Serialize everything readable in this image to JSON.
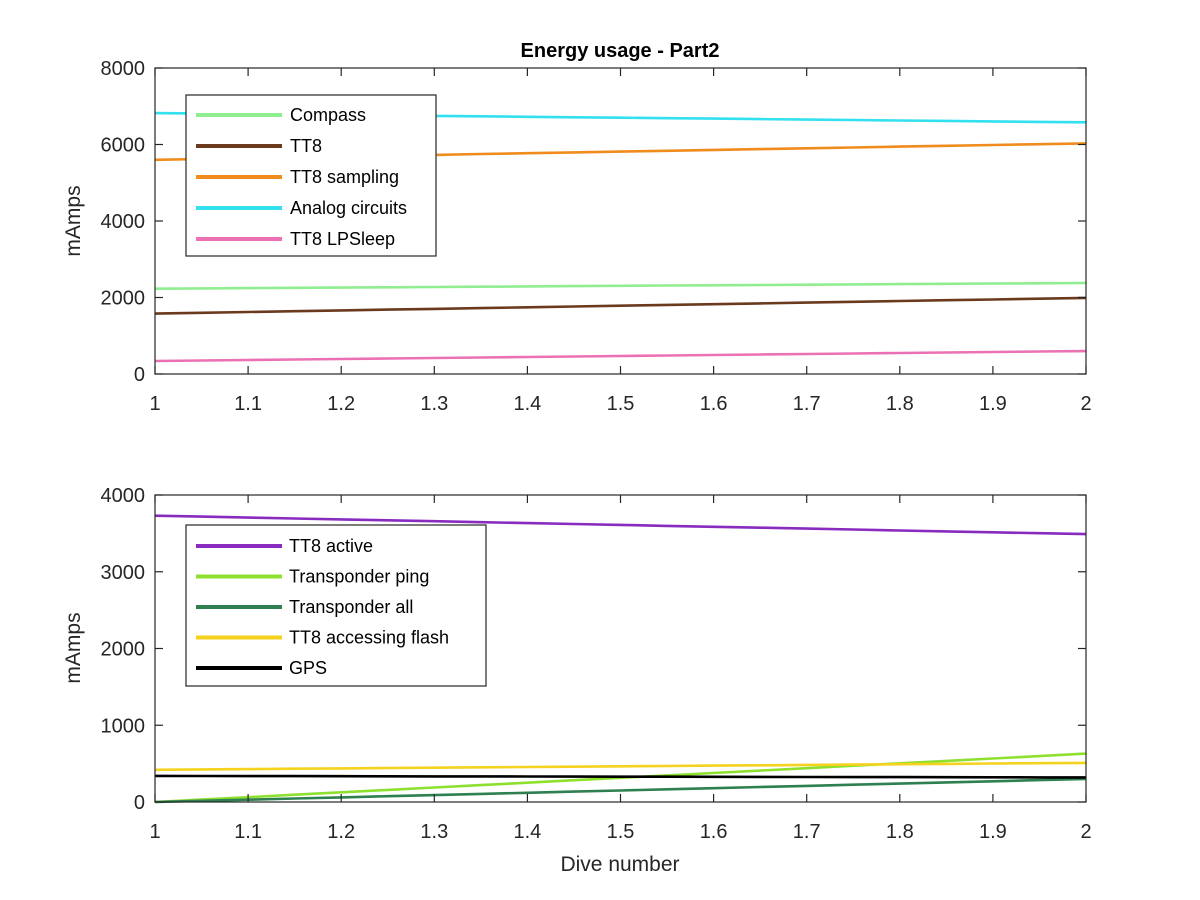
{
  "chart_data": [
    {
      "type": "line",
      "title": "Energy usage - Part2",
      "xlabel": "",
      "ylabel": "mAmps",
      "xlim": [
        1,
        2
      ],
      "ylim": [
        0,
        8000
      ],
      "xticks": [
        1,
        1.1,
        1.2,
        1.3,
        1.4,
        1.5,
        1.6,
        1.7,
        1.8,
        1.9,
        2
      ],
      "yticks": [
        0,
        2000,
        4000,
        6000,
        8000
      ],
      "x_tick_labels": [
        "1",
        "1.1",
        "1.2",
        "1.3",
        "1.4",
        "1.5",
        "1.6",
        "1.7",
        "1.8",
        "1.9",
        "2"
      ],
      "y_tick_labels": [
        "0",
        "2000",
        "4000",
        "6000",
        "8000"
      ],
      "grid": false,
      "legend_position": "top-left",
      "series": [
        {
          "name": "Compass",
          "color": "#90EE90",
          "x": [
            1,
            2
          ],
          "values": [
            2230,
            2380
          ]
        },
        {
          "name": "TT8",
          "color": "#6B3A1E",
          "x": [
            1,
            2
          ],
          "values": [
            1580,
            1990
          ]
        },
        {
          "name": "TT8 sampling",
          "color": "#F08C1E",
          "x": [
            1,
            2
          ],
          "values": [
            5600,
            6030
          ]
        },
        {
          "name": "Analog circuits",
          "color": "#33E0F0",
          "x": [
            1,
            2
          ],
          "values": [
            6820,
            6580
          ]
        },
        {
          "name": "TT8 LPSleep",
          "color": "#EC70B4",
          "x": [
            1,
            2
          ],
          "values": [
            340,
            600
          ]
        }
      ]
    },
    {
      "type": "line",
      "title": "",
      "xlabel": "Dive number",
      "ylabel": "mAmps",
      "xlim": [
        1,
        2
      ],
      "ylim": [
        0,
        4000
      ],
      "xticks": [
        1,
        1.1,
        1.2,
        1.3,
        1.4,
        1.5,
        1.6,
        1.7,
        1.8,
        1.9,
        2
      ],
      "yticks": [
        0,
        1000,
        2000,
        3000,
        4000
      ],
      "x_tick_labels": [
        "1",
        "1.1",
        "1.2",
        "1.3",
        "1.4",
        "1.5",
        "1.6",
        "1.7",
        "1.8",
        "1.9",
        "2"
      ],
      "y_tick_labels": [
        "0",
        "1000",
        "2000",
        "3000",
        "4000"
      ],
      "grid": false,
      "legend_position": "top-left",
      "series": [
        {
          "name": "TT8 active",
          "color": "#8A2BC0",
          "x": [
            1,
            2
          ],
          "values": [
            3730,
            3490
          ]
        },
        {
          "name": "Transponder ping",
          "color": "#8EE02E",
          "x": [
            1,
            2
          ],
          "values": [
            0,
            630
          ]
        },
        {
          "name": "Transponder all",
          "color": "#2E8050",
          "x": [
            1,
            2
          ],
          "values": [
            0,
            300
          ]
        },
        {
          "name": "TT8 accessing flash",
          "color": "#F4D21E",
          "x": [
            1,
            2
          ],
          "values": [
            420,
            510
          ]
        },
        {
          "name": "GPS",
          "color": "#000000",
          "x": [
            1,
            2
          ],
          "values": [
            340,
            320
          ]
        }
      ]
    }
  ]
}
